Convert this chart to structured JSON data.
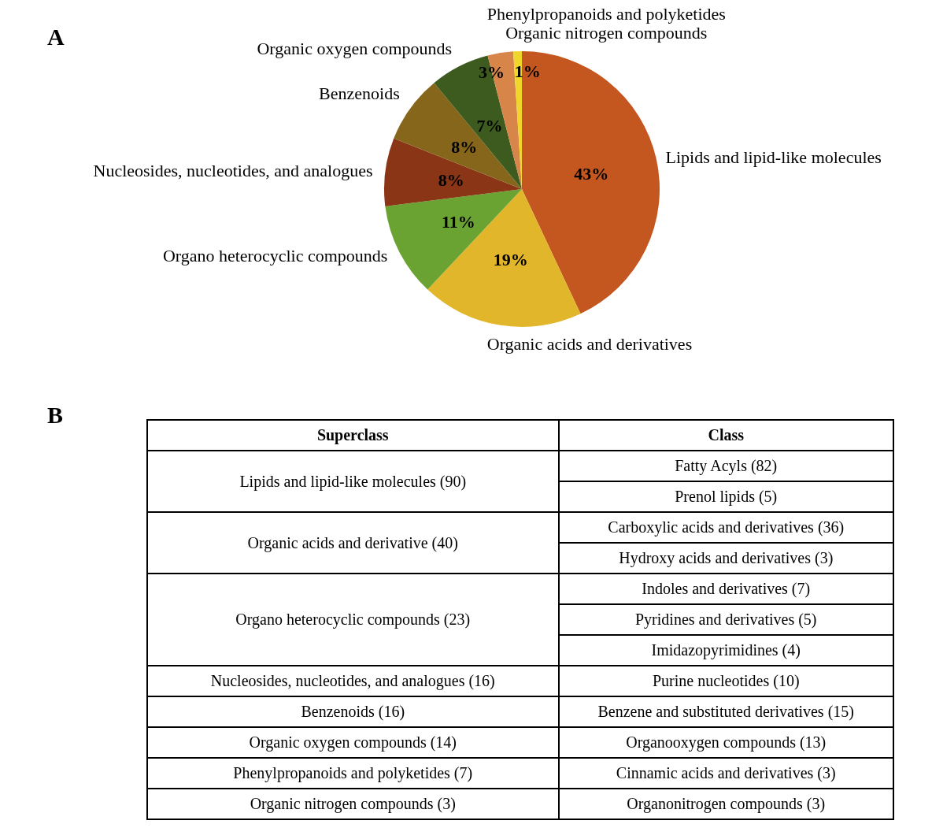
{
  "chart_data": [
    {
      "type": "pie",
      "title": "A",
      "categories": [
        "Lipids and lipid-like molecules",
        "Organic acids and derivatives",
        "Organo heterocyclic compounds",
        "Nucleosides, nucleotides, and analogues",
        "Benzenoids",
        "Organic oxygen compounds",
        "Phenylpropanoids and polyketides",
        "Organic nitrogen compounds"
      ],
      "values": [
        43,
        19,
        11,
        8,
        8,
        7,
        3,
        1
      ],
      "colors": [
        "#c4561f",
        "#e2b62a",
        "#6aa332",
        "#8a3515",
        "#86661a",
        "#3d5a1f",
        "#d8854a",
        "#f0d52a"
      ],
      "value_labels": [
        "43%",
        "19%",
        "11%",
        "8%",
        "8%",
        "7%",
        "3%",
        "1%"
      ],
      "legend": false
    },
    {
      "type": "other",
      "title": "B",
      "categories": [
        "Superclass",
        "Class"
      ],
      "cell_labels": [
        [
          "Lipids and lipid-like molecules (90)",
          "Fatty Acyls (82)"
        ],
        [
          null,
          "Prenol lipids (5)"
        ],
        [
          "Organic acids and derivative (40)",
          "Carboxylic acids and derivatives (36)"
        ],
        [
          null,
          "Hydroxy acids and derivatives (3)"
        ],
        [
          "Organo heterocyclic compounds (23)",
          "Indoles and derivatives (7)"
        ],
        [
          null,
          "Pyridines and derivatives (5)"
        ],
        [
          null,
          "Imidazopyrimidines  (4)"
        ],
        [
          "Nucleosides, nucleotides, and analogues (16)",
          "Purine nucleotides (10)"
        ],
        [
          "Benzenoids (16)",
          "Benzene and substituted derivatives (15)"
        ],
        [
          "Organic oxygen compounds (14)",
          "Organooxygen compounds (13)"
        ],
        [
          "Phenylpropanoids and polyketides (7)",
          "Cinnamic acids and derivatives (3)"
        ],
        [
          "Organic nitrogen compounds (3)",
          "Organonitrogen compounds (3)"
        ]
      ]
    }
  ]
}
